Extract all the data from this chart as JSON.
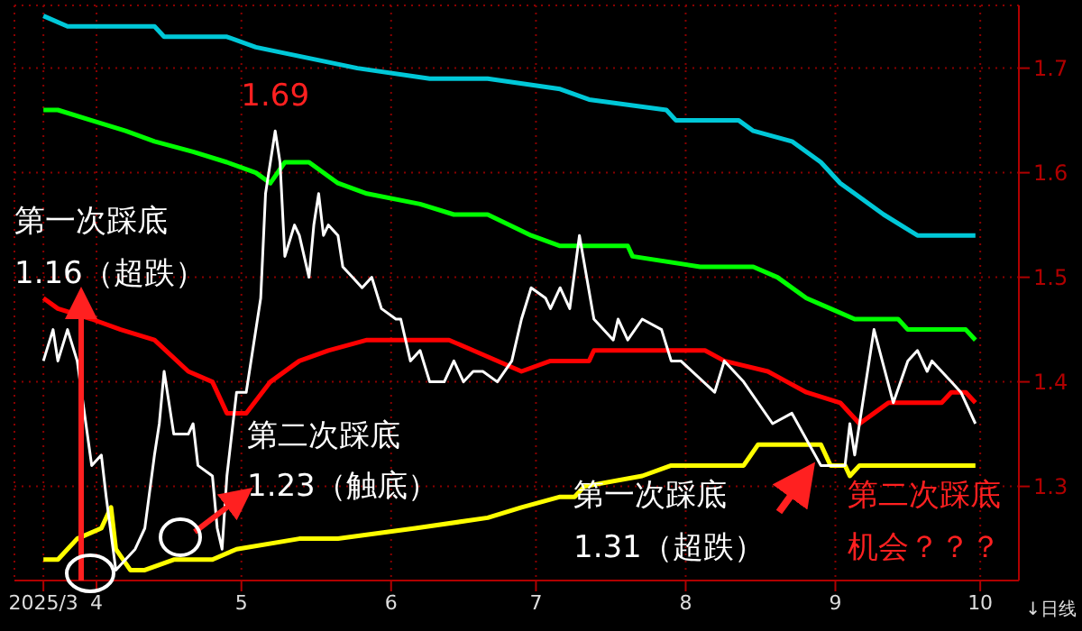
{
  "chart_data": {
    "type": "line",
    "xlim": [
      "2025-03-15",
      "2025-10-09"
    ],
    "xticks": [
      {
        "value": "2025-03-21",
        "label": "2025/3"
      },
      {
        "value": "2025-04-01",
        "label": "4"
      },
      {
        "value": "2025-05-01",
        "label": "5"
      },
      {
        "value": "2025-06-01",
        "label": "6"
      },
      {
        "value": "2025-07-01",
        "label": "7"
      },
      {
        "value": "2025-08-01",
        "label": "8"
      },
      {
        "value": "2025-09-01",
        "label": "9"
      },
      {
        "value": "2025-10-01",
        "label": "10"
      }
    ],
    "ylim": [
      1.21,
      1.76
    ],
    "yticks": [
      1.3,
      1.4,
      1.5,
      1.6,
      1.7
    ],
    "grid": true,
    "marker": "none",
    "line_style": "solid",
    "series": [
      {
        "color": "#00c8d8",
        "x": [
          "2025-03-21",
          "2025-03-26",
          "2025-04-13",
          "2025-04-15",
          "2025-04-28",
          "2025-05-04",
          "2025-05-25",
          "2025-06-09",
          "2025-06-21",
          "2025-07-06",
          "2025-07-12",
          "2025-07-28",
          "2025-07-30",
          "2025-08-12",
          "2025-08-15",
          "2025-08-23",
          "2025-08-29",
          "2025-09-02",
          "2025-09-05",
          "2025-09-11",
          "2025-09-18",
          "2025-09-30"
        ],
        "values": [
          1.75,
          1.74,
          1.74,
          1.73,
          1.73,
          1.72,
          1.7,
          1.69,
          1.69,
          1.68,
          1.67,
          1.66,
          1.65,
          1.65,
          1.64,
          1.63,
          1.61,
          1.59,
          1.58,
          1.56,
          1.54,
          1.54
        ]
      },
      {
        "color": "#00ff00",
        "x": [
          "2025-03-21",
          "2025-03-24",
          "2025-03-31",
          "2025-04-07",
          "2025-04-13",
          "2025-04-21",
          "2025-04-28",
          "2025-05-04",
          "2025-05-07",
          "2025-05-10",
          "2025-05-15",
          "2025-05-21",
          "2025-05-27",
          "2025-06-07",
          "2025-06-14",
          "2025-06-21",
          "2025-06-30",
          "2025-07-06",
          "2025-07-20",
          "2025-07-21",
          "2025-08-04",
          "2025-08-15",
          "2025-08-20",
          "2025-08-26",
          "2025-08-31",
          "2025-09-05",
          "2025-09-14",
          "2025-09-16",
          "2025-09-28",
          "2025-09-30"
        ],
        "values": [
          1.66,
          1.66,
          1.65,
          1.64,
          1.63,
          1.62,
          1.61,
          1.6,
          1.59,
          1.61,
          1.61,
          1.59,
          1.58,
          1.57,
          1.56,
          1.56,
          1.54,
          1.53,
          1.53,
          1.52,
          1.51,
          1.51,
          1.5,
          1.48,
          1.47,
          1.46,
          1.46,
          1.45,
          1.45,
          1.44
        ]
      },
      {
        "color": "#ff0000",
        "x": [
          "2025-03-21",
          "2025-03-24",
          "2025-03-31",
          "2025-04-06",
          "2025-04-13",
          "2025-04-20",
          "2025-04-25",
          "2025-04-28",
          "2025-05-02",
          "2025-05-07",
          "2025-05-13",
          "2025-05-19",
          "2025-05-27",
          "2025-05-30",
          "2025-06-13",
          "2025-06-18",
          "2025-06-28",
          "2025-07-04",
          "2025-07-12",
          "2025-07-13",
          "2025-08-05",
          "2025-08-09",
          "2025-08-18",
          "2025-08-22",
          "2025-08-26",
          "2025-09-02",
          "2025-09-06",
          "2025-09-09",
          "2025-09-12",
          "2025-09-23",
          "2025-09-25",
          "2025-09-28",
          "2025-09-30"
        ],
        "values": [
          1.48,
          1.47,
          1.46,
          1.45,
          1.44,
          1.41,
          1.4,
          1.37,
          1.37,
          1.4,
          1.42,
          1.43,
          1.44,
          1.44,
          1.44,
          1.43,
          1.41,
          1.42,
          1.42,
          1.43,
          1.43,
          1.42,
          1.41,
          1.4,
          1.39,
          1.38,
          1.36,
          1.37,
          1.38,
          1.38,
          1.39,
          1.39,
          1.38
        ]
      },
      {
        "color": "#ffff00",
        "x": [
          "2025-03-21",
          "2025-03-24",
          "2025-03-28",
          "2025-04-02",
          "2025-04-04",
          "2025-04-05",
          "2025-04-08",
          "2025-04-11",
          "2025-04-17",
          "2025-04-25",
          "2025-04-30",
          "2025-05-13",
          "2025-05-21",
          "2025-06-06",
          "2025-06-21",
          "2025-06-28",
          "2025-07-06",
          "2025-07-09",
          "2025-07-11",
          "2025-07-23",
          "2025-07-29",
          "2025-08-13",
          "2025-08-16",
          "2025-08-29",
          "2025-08-31",
          "2025-09-03",
          "2025-09-04",
          "2025-09-06",
          "2025-09-30"
        ],
        "values": [
          1.23,
          1.23,
          1.25,
          1.26,
          1.28,
          1.24,
          1.22,
          1.22,
          1.23,
          1.23,
          1.24,
          1.25,
          1.25,
          1.26,
          1.27,
          1.28,
          1.29,
          1.29,
          1.3,
          1.31,
          1.32,
          1.32,
          1.34,
          1.34,
          1.32,
          1.32,
          1.31,
          1.32,
          1.32
        ]
      },
      {
        "color": "#ffffff",
        "x": [
          "2025-03-21",
          "2025-03-23",
          "2025-03-24",
          "2025-03-26",
          "2025-03-28",
          "2025-03-31",
          "2025-04-02",
          "2025-04-03",
          "2025-04-05",
          "2025-04-07",
          "2025-04-09",
          "2025-04-11",
          "2025-04-13",
          "2025-04-14",
          "2025-04-15",
          "2025-04-17",
          "2025-04-18",
          "2025-04-20",
          "2025-04-21",
          "2025-04-22",
          "2025-04-25",
          "2025-04-26",
          "2025-04-27",
          "2025-04-28",
          "2025-04-30",
          "2025-05-02",
          "2025-05-05",
          "2025-05-06",
          "2025-05-08",
          "2025-05-09",
          "2025-05-10",
          "2025-05-12",
          "2025-05-13",
          "2025-05-15",
          "2025-05-16",
          "2025-05-17",
          "2025-05-18",
          "2025-05-19",
          "2025-05-21",
          "2025-05-22",
          "2025-05-24",
          "2025-05-26",
          "2025-05-28",
          "2025-05-30",
          "2025-06-02",
          "2025-06-03",
          "2025-06-05",
          "2025-06-07",
          "2025-06-09",
          "2025-06-11",
          "2025-06-12",
          "2025-06-14",
          "2025-06-16",
          "2025-06-18",
          "2025-06-20",
          "2025-06-23",
          "2025-06-26",
          "2025-06-28",
          "2025-06-30",
          "2025-07-03",
          "2025-07-04",
          "2025-07-06",
          "2025-07-08",
          "2025-07-10",
          "2025-07-13",
          "2025-07-17",
          "2025-07-18",
          "2025-07-20",
          "2025-07-23",
          "2025-07-27",
          "2025-07-29",
          "2025-07-31",
          "2025-08-07",
          "2025-08-09",
          "2025-08-13",
          "2025-08-19",
          "2025-08-23",
          "2025-08-29",
          "2025-09-03",
          "2025-09-04",
          "2025-09-05",
          "2025-09-09",
          "2025-09-13",
          "2025-09-16",
          "2025-09-18",
          "2025-09-20",
          "2025-09-21",
          "2025-09-25",
          "2025-09-27",
          "2025-09-30"
        ],
        "values": [
          1.42,
          1.45,
          1.42,
          1.45,
          1.42,
          1.32,
          1.33,
          1.29,
          1.22,
          1.23,
          1.24,
          1.26,
          1.33,
          1.36,
          1.41,
          1.35,
          1.35,
          1.35,
          1.36,
          1.32,
          1.31,
          1.26,
          1.24,
          1.31,
          1.39,
          1.39,
          1.48,
          1.58,
          1.64,
          1.61,
          1.52,
          1.55,
          1.54,
          1.5,
          1.55,
          1.58,
          1.54,
          1.55,
          1.54,
          1.51,
          1.5,
          1.49,
          1.5,
          1.47,
          1.46,
          1.46,
          1.42,
          1.43,
          1.4,
          1.4,
          1.4,
          1.42,
          1.4,
          1.41,
          1.41,
          1.4,
          1.42,
          1.46,
          1.49,
          1.48,
          1.47,
          1.49,
          1.47,
          1.54,
          1.46,
          1.44,
          1.46,
          1.44,
          1.46,
          1.45,
          1.42,
          1.42,
          1.39,
          1.42,
          1.4,
          1.36,
          1.37,
          1.32,
          1.32,
          1.36,
          1.33,
          1.45,
          1.38,
          1.42,
          1.43,
          1.41,
          1.42,
          1.4,
          1.39,
          1.36
        ]
      }
    ],
    "annotations": [
      {
        "text": "1.69",
        "x": "2025-05-08",
        "y": 1.64
      },
      "第一次踩底",
      "1.16（超跌）",
      "第二次踩底",
      "1.23（触底）",
      "第一次踩底",
      "1.31（超跌）",
      "第二次踩底",
      "机会？？？",
      "↓日线"
    ]
  }
}
